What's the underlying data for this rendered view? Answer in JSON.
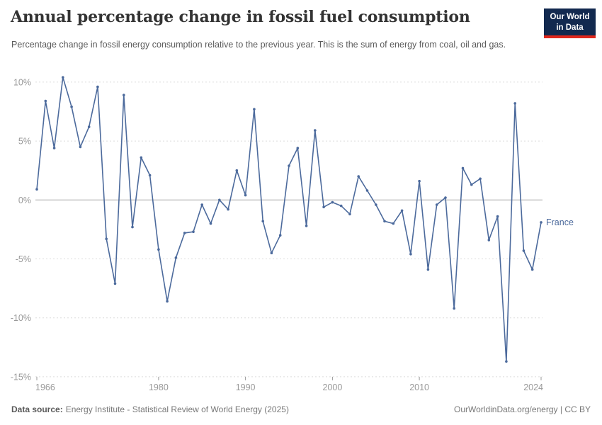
{
  "header": {
    "title": "Annual percentage change in fossil fuel consumption",
    "subtitle": "Percentage change in fossil energy consumption relative to the previous year. This is the sum of energy from coal, oil and gas.",
    "logo": {
      "line1": "Our World",
      "line2": "in Data",
      "bg_color": "#12294F",
      "accent_color": "#E0271C"
    }
  },
  "chart_data": {
    "type": "line",
    "title": "Annual percentage change in fossil fuel consumption",
    "entity": "France",
    "line_color": "#4C6A9C",
    "x": [
      1966,
      1967,
      1968,
      1969,
      1970,
      1971,
      1972,
      1973,
      1974,
      1975,
      1976,
      1977,
      1978,
      1979,
      1980,
      1981,
      1982,
      1983,
      1984,
      1985,
      1986,
      1987,
      1988,
      1989,
      1990,
      1991,
      1992,
      1993,
      1994,
      1995,
      1996,
      1997,
      1998,
      1999,
      2000,
      2001,
      2002,
      2003,
      2004,
      2005,
      2006,
      2007,
      2008,
      2009,
      2010,
      2011,
      2012,
      2013,
      2014,
      2015,
      2016,
      2017,
      2018,
      2019,
      2020,
      2021,
      2022,
      2023,
      2024
    ],
    "values": [
      0.9,
      8.4,
      4.4,
      10.4,
      7.9,
      4.5,
      6.2,
      9.6,
      -3.3,
      -7.1,
      8.9,
      -2.3,
      3.6,
      2.1,
      -4.2,
      -8.6,
      -4.9,
      -2.8,
      -2.7,
      -0.4,
      -2.0,
      0.0,
      -0.8,
      2.5,
      0.4,
      7.7,
      -1.8,
      -4.5,
      -3.0,
      2.9,
      4.4,
      -2.2,
      5.9,
      -0.6,
      -0.2,
      -0.5,
      -1.2,
      2.0,
      0.8,
      -0.4,
      -1.8,
      -2.0,
      -0.9,
      -4.6,
      1.6,
      -5.9,
      -0.4,
      0.2,
      -9.2,
      2.7,
      1.3,
      1.8,
      -3.4,
      -1.4,
      -13.7,
      8.2,
      -4.3,
      -5.9,
      -1.9
    ],
    "x_ticks": [
      1966,
      1980,
      1990,
      2000,
      2010,
      2024
    ],
    "y_ticks": [
      10,
      5,
      0,
      -5,
      -10,
      -15
    ],
    "y_tick_suffix": "%",
    "ylim": [
      -15,
      10.5
    ],
    "xlabel": "",
    "ylabel": "",
    "grid": "horizontal-dashed",
    "legend_position": "end-of-line",
    "zero_line_color": "#a7a7a7",
    "grid_color": "#dcdcdc",
    "axis_label_color": "#999999"
  },
  "footer": {
    "datasource_label": "Data source:",
    "datasource_value": "Energy Institute - Statistical Review of World Energy (2025)",
    "credit": "OurWorldinData.org/energy | CC BY"
  }
}
